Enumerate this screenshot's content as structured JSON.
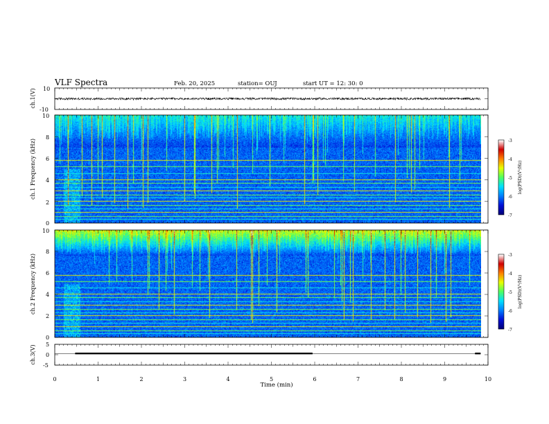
{
  "header": {
    "title": "VLF Spectra",
    "date": "Feb. 20, 2025",
    "station": "station= OUJ",
    "start_ut": "start  UT =   12: 30: 0"
  },
  "chart_data": [
    {
      "type": "line",
      "name": "ch1-waveform",
      "ylabel": "ch.1(V)",
      "ylim": [
        -10,
        10
      ],
      "yticks": [
        "10",
        "-10"
      ],
      "baseline": 0,
      "amplitude": 1.0
    },
    {
      "type": "heatmap",
      "name": "ch1-spectrogram",
      "ylabel": "ch.1 Frequency (kHz)",
      "ylim": [
        0,
        10
      ],
      "yticks": [
        "0",
        "2",
        "4",
        "6",
        "8",
        "10"
      ],
      "colorbar": {
        "label": "log(PSD)(V²/Hz)",
        "range": [
          -7,
          -3
        ],
        "ticks": [
          "-3",
          "-4",
          "-5",
          "-6",
          "-7"
        ]
      },
      "lines_khz": [
        0.3,
        0.6,
        1.0,
        1.3,
        1.6,
        2.0,
        2.3,
        2.6,
        3.0,
        3.3,
        3.7,
        4.0,
        4.6,
        5.2,
        5.8
      ],
      "noise_floor_khz": 7.0
    },
    {
      "type": "heatmap",
      "name": "ch2-spectrogram",
      "ylabel": "ch.2 Frequency (kHz)",
      "ylim": [
        0,
        10
      ],
      "yticks": [
        "0",
        "2",
        "4",
        "6",
        "8",
        "10"
      ],
      "colorbar": {
        "label": "log(PSD)(V²/Hz)",
        "range": [
          -7,
          -3
        ],
        "ticks": [
          "-3",
          "-4",
          "-5",
          "-6",
          "-7"
        ]
      },
      "lines_khz": [
        0.3,
        0.6,
        1.0,
        1.3,
        1.6,
        2.0,
        2.3,
        2.6,
        3.0,
        3.3,
        3.7,
        4.0,
        4.6,
        5.2,
        5.8
      ],
      "noise_floor_khz": 7.6
    },
    {
      "type": "line",
      "name": "ch3-signal",
      "ylabel": "ch.3(V)",
      "ylim": [
        -5,
        5
      ],
      "yticks": [
        "5",
        "0",
        "-5"
      ],
      "segments": [
        {
          "x": [
            0.47,
            5.95
          ],
          "y": 0.6
        },
        {
          "x": [
            9.7,
            9.83
          ],
          "y": 0.6
        }
      ]
    }
  ],
  "xaxis": {
    "xlabel": "Time (min)",
    "xlim": [
      0,
      10
    ],
    "ticks": [
      "0",
      "1",
      "2",
      "3",
      "4",
      "5",
      "6",
      "7",
      "8",
      "9",
      "10"
    ],
    "data_end": 9.83
  },
  "colors": {
    "spectrogram_floor": "#000a55",
    "colormap": [
      "#00007a",
      "#0010d8",
      "#0080ff",
      "#00e0ff",
      "#50ff60",
      "#e8ff00",
      "#ff8000",
      "#d00000",
      "#ffffff"
    ]
  }
}
